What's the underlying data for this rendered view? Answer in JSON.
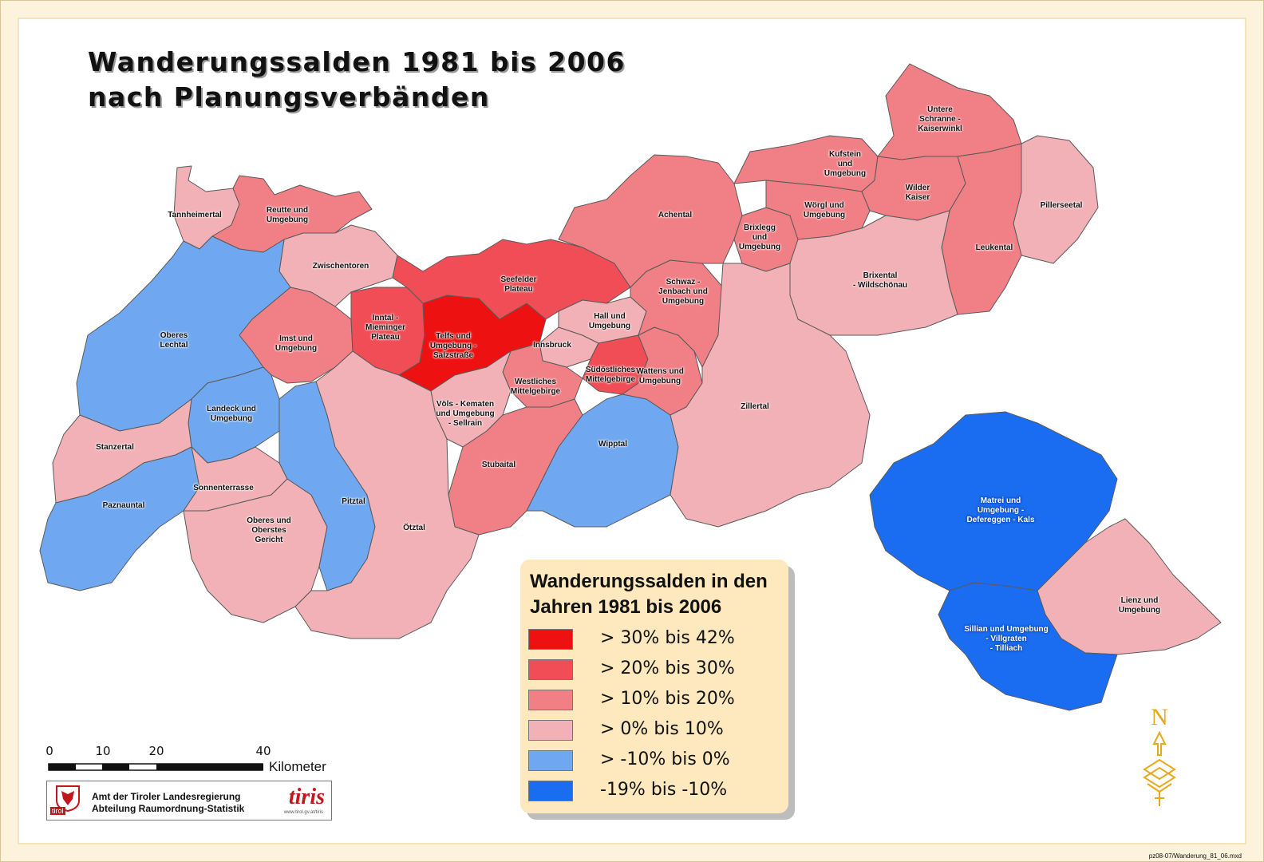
{
  "title": {
    "line1": "Wanderungssalden 1981 bis 2006",
    "line2": "nach Planungsverbänden"
  },
  "classes": [
    {
      "id": "c1",
      "label": "> 30% bis 42%",
      "color": "#ee1111"
    },
    {
      "id": "c2",
      "label": "> 20% bis 30%",
      "color": "#f04d56"
    },
    {
      "id": "c3",
      "label": "> 10% bis 20%",
      "color": "#f17f86"
    },
    {
      "id": "c4",
      "label": "> 0% bis 10%",
      "color": "#f2b1b6"
    },
    {
      "id": "c5",
      "label": "> -10% bis 0%",
      "color": "#6fa8f0"
    },
    {
      "id": "c6",
      "label": "-19% bis -10%",
      "color": "#1a6cf0"
    }
  ],
  "legend": {
    "title_line1": "Wanderungssalden in den",
    "title_line2": "Jahren 1981 bis 2006"
  },
  "regions": [
    {
      "name": "Tannheimertal",
      "class": "c4"
    },
    {
      "name": "Reutte und\nUmgebung",
      "class": "c3"
    },
    {
      "name": "Zwischentoren",
      "class": "c4"
    },
    {
      "name": "Oberes\nLechtal",
      "class": "c5"
    },
    {
      "name": "Imst und\nUmgebung",
      "class": "c3"
    },
    {
      "name": "Inntal -\nMieminger\nPlateau",
      "class": "c2"
    },
    {
      "name": "Telfs und\nUmgebung -\nSalzstraße",
      "class": "c1"
    },
    {
      "name": "Seefelder\nPlateau",
      "class": "c2"
    },
    {
      "name": "Innsbruck",
      "class": "c4"
    },
    {
      "name": "Hall und\nUmgebung",
      "class": "c4"
    },
    {
      "name": "Südöstliches\nMittelgebirge",
      "class": "c2"
    },
    {
      "name": "Westliches\nMittelgebirge",
      "class": "c3"
    },
    {
      "name": "Völs - Kematen\nund Umgebung\n- Sellrain",
      "class": "c4"
    },
    {
      "name": "Stubaital",
      "class": "c3"
    },
    {
      "name": "Wipptal",
      "class": "c5"
    },
    {
      "name": "Wattens und\nUmgebung",
      "class": "c3"
    },
    {
      "name": "Schwaz -\nJenbach und\nUmgebung",
      "class": "c3"
    },
    {
      "name": "Achental",
      "class": "c3"
    },
    {
      "name": "Brixlegg\nund\nUmgebung",
      "class": "c3"
    },
    {
      "name": "Kufstein\nund\nUmgebung",
      "class": "c3"
    },
    {
      "name": "Wörgl und\nUmgebung",
      "class": "c3"
    },
    {
      "name": "Untere\nSchranne -\nKaiserwinkl",
      "class": "c3"
    },
    {
      "name": "Wilder\nKaiser",
      "class": "c3"
    },
    {
      "name": "Pillerseetal",
      "class": "c4"
    },
    {
      "name": "Leukental",
      "class": "c3"
    },
    {
      "name": "Brixental\n- Wildschönau",
      "class": "c4"
    },
    {
      "name": "Zillertal",
      "class": "c4"
    },
    {
      "name": "Landeck und\nUmgebung",
      "class": "c5"
    },
    {
      "name": "Stanzertal",
      "class": "c4"
    },
    {
      "name": "Paznauntal",
      "class": "c5"
    },
    {
      "name": "Sonnenterrasse",
      "class": "c4"
    },
    {
      "name": "Oberes und\nOberstes\nGericht",
      "class": "c4"
    },
    {
      "name": "Pitztal",
      "class": "c5"
    },
    {
      "name": "Ötztal",
      "class": "c4"
    },
    {
      "name": "Matrei und\nUmgebung -\nDefereggen - Kals",
      "class": "c6"
    },
    {
      "name": "Lienz und\nUmgebung",
      "class": "c4"
    },
    {
      "name": "Sillian und Umgebung\n- Villgraten\n- Tilliach",
      "class": "c6"
    }
  ],
  "scale_bar": {
    "ticks": [
      "0",
      "10",
      "20",
      "40"
    ],
    "unit": "Kilometer"
  },
  "credit": {
    "line1": "Amt der Tiroler Landesregierung",
    "line2": "Abteilung Raumordnung-Statistik",
    "brand": "tiris",
    "url": "www.tirol.gv.at/tiris",
    "tirol": "tirol"
  },
  "north_arrow": {
    "letter": "N",
    "icon": "north-arrow-icon"
  },
  "file_note": "pz08-07/Wanderung_81_06.mxd"
}
